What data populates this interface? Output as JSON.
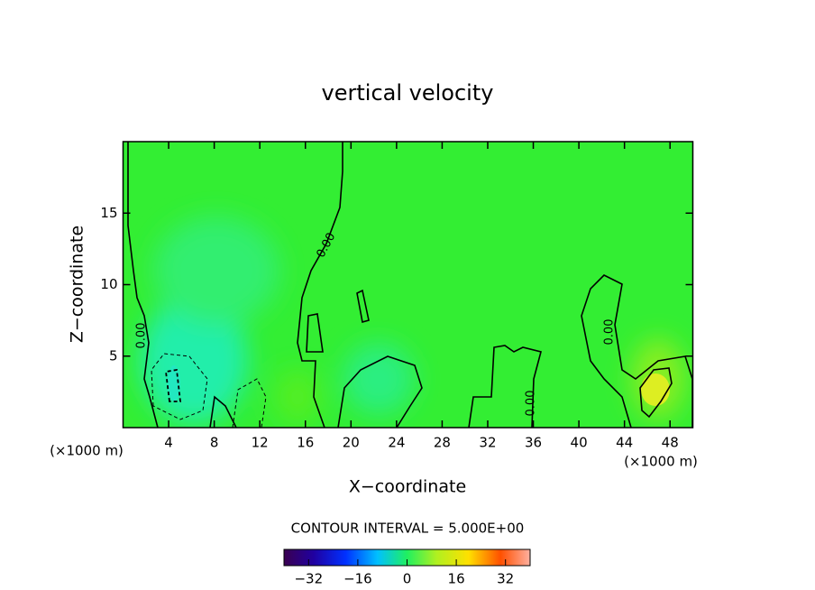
{
  "chart_data": {
    "type": "contour",
    "title": "vertical velocity",
    "x_label": "X−coordinate",
    "y_label": "Z−coordinate",
    "x_unit_label": "(×1000 m)",
    "contour_label": "0.00",
    "contour_interval_text": "CONTOUR INTERVAL = 5.000E+00",
    "xlim": [
      0,
      50
    ],
    "xticks": [
      4,
      8,
      12,
      16,
      20,
      24,
      28,
      32,
      36,
      40,
      44,
      48
    ],
    "ylim": [
      0,
      20
    ],
    "yticks": [
      5,
      10,
      15
    ],
    "colorbar": {
      "clim": [
        -40,
        40
      ],
      "ticks": [
        {
          "value": -32,
          "label": "−32"
        },
        {
          "value": -16,
          "label": "−16"
        },
        0,
        16,
        32
      ]
    }
  }
}
